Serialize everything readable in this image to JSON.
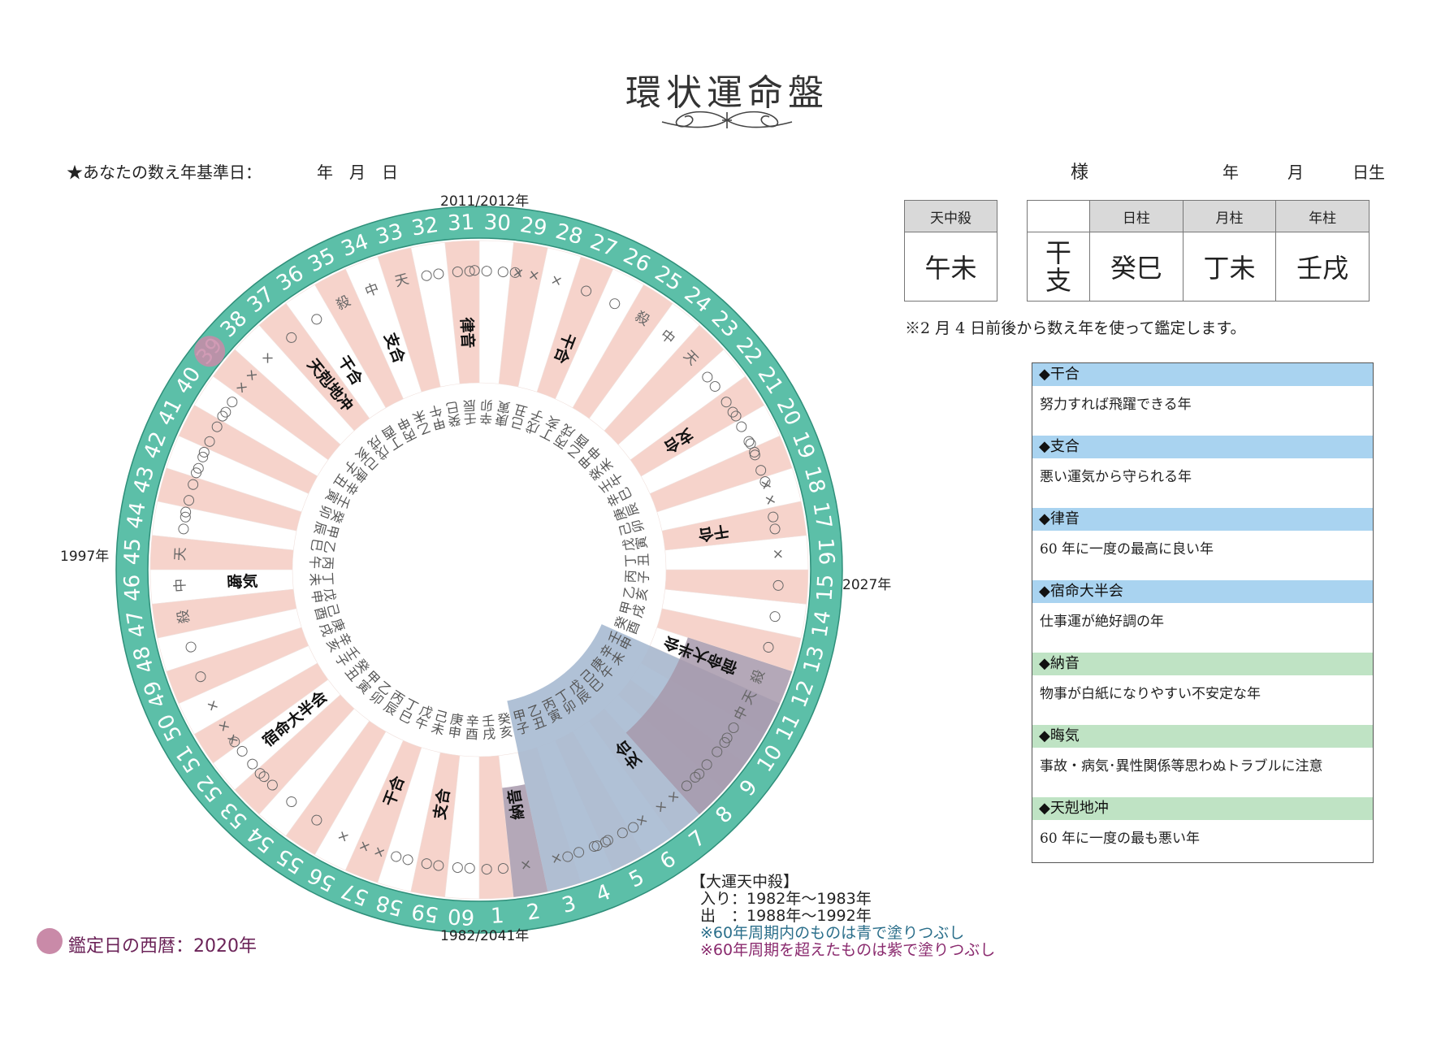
{
  "title": "環状運命盤",
  "header": {
    "basis_label": "★あなたの数え年基準日：",
    "basis_date": "年　月　日",
    "sama": "様",
    "birth": "年　　　月　　　日生"
  },
  "tenchusatsu": {
    "header": "天中殺",
    "value": "午未"
  },
  "pillars": {
    "row_label_1": "干",
    "row_label_2": "支",
    "columns": [
      {
        "header": "日柱",
        "value": "癸巳"
      },
      {
        "header": "月柱",
        "value": "丁未"
      },
      {
        "header": "年柱",
        "value": "壬戌"
      }
    ]
  },
  "footnote": "※2 月 4 日前後から数え年を使って鑑定します。",
  "legend": [
    {
      "term": "◆干合",
      "desc": "努力すれば飛躍できる年",
      "color": "#a9d3f0"
    },
    {
      "term": "◆支合",
      "desc": "悪い運気から守られる年",
      "color": "#a9d3f0"
    },
    {
      "term": "◆律音",
      "desc": "60 年に一度の最高に良い年",
      "color": "#a9d3f0"
    },
    {
      "term": "◆宿命大半会",
      "desc": "仕事運が絶好調の年",
      "color": "#a9d3f0"
    },
    {
      "term": "◆納音",
      "desc": "物事が白紙になりやすい不安定な年",
      "color": "#bfe3c4"
    },
    {
      "term": "◆晦気",
      "desc": "事故・病気･異性関係等思わぬトラブルに注意",
      "color": "#bfe3c4"
    },
    {
      "term": "◆天剋地冲",
      "desc": "60 年に一度の最も悪い年",
      "color": "#bfe3c4"
    }
  ],
  "wheel": {
    "year_top": "2011/2012年",
    "year_bottom": "1982/2041年",
    "year_left": "1997年",
    "year_right": "2027年",
    "ring_color": "#5cbfa8",
    "pink_color": "#f6d3cb",
    "blue_color": "#a9bcd2",
    "purple_color": "#a799ab",
    "marker_color": "#c98aa8",
    "current_age": 39,
    "ganzhi": [
      "壬戌",
      "癸亥",
      "甲子",
      "乙丑",
      "丙寅",
      "丁卯",
      "戊辰",
      "己巳",
      "庚午",
      "辛未",
      "壬申",
      "癸酉",
      "甲戌",
      "乙亥",
      "丙子",
      "丁丑",
      "戊寅",
      "己卯",
      "庚辰",
      "辛巳",
      "壬午",
      "癸未",
      "甲申",
      "乙酉",
      "丙戌",
      "丁亥",
      "戊子",
      "己丑",
      "庚寅",
      "辛卯",
      "壬辰",
      "癸巳",
      "甲午",
      "乙未",
      "丙申",
      "丁酉",
      "戊戌",
      "己亥",
      "庚子",
      "辛丑",
      "壬寅",
      "癸卯",
      "甲辰",
      "乙巳",
      "丙午",
      "丁未",
      "戊申",
      "己酉",
      "庚戌",
      "辛亥",
      "壬子",
      "癸丑",
      "甲寅",
      "乙卯",
      "丙辰",
      "丁巳",
      "戊午",
      "己未",
      "庚申",
      "辛酉"
    ],
    "marks": [
      "○ ○",
      "×",
      "×",
      "○○ ○○",
      "○○ ○○",
      "×",
      "× ×",
      "○○",
      "○○ ○○",
      "○○",
      "中 天",
      "殺",
      "○",
      "○",
      "○",
      "×",
      "○○",
      "× ×",
      "○○ ○○",
      "○○ ○○",
      "○○",
      "○○",
      "天",
      "中",
      "殺",
      "○",
      "○",
      "×",
      "× ×",
      "○○ ○○",
      "○○",
      "○○",
      "天",
      "中",
      "殺",
      "○",
      "○",
      "×",
      "× ×",
      "○○",
      "○○ ○○",
      "○○",
      "○○ ○○",
      "○○",
      "天",
      "中",
      "殺",
      "○",
      "○",
      "×",
      "× ×",
      "○○ ○○",
      "○○",
      "○",
      "○",
      "×",
      "× ×",
      "○○",
      "○○",
      "○○"
    ],
    "events": [
      {
        "age": 2,
        "text": "納音"
      },
      {
        "age": 7,
        "text": "支合"
      },
      {
        "age": 12,
        "text": "宿命大半会"
      },
      {
        "age": 17,
        "text": "干合"
      },
      {
        "age": 21,
        "text": "支合"
      },
      {
        "age": 27,
        "text": "干合"
      },
      {
        "age": 31,
        "text": "律音"
      },
      {
        "age": 34,
        "text": "支合"
      },
      {
        "age": 36,
        "text": "干合"
      },
      {
        "age": 37,
        "text": "天剋地冲"
      },
      {
        "age": 46,
        "text": "晦気"
      },
      {
        "age": 52,
        "text": "宿命大半会"
      },
      {
        "age": 57,
        "text": "干合"
      },
      {
        "age": 59,
        "text": "支合"
      }
    ]
  },
  "daiun": {
    "heading": "【大運天中殺】",
    "entry": "入り：1982年～1983年",
    "exit": "出　：1988年～1992年",
    "note_blue": "※60年周期内のものは青で塗りつぶし",
    "note_purple": "※60年周期を超えたものは紫で塗りつぶし"
  },
  "appraisal": {
    "label": "鑑定日の西暦：2020年"
  }
}
